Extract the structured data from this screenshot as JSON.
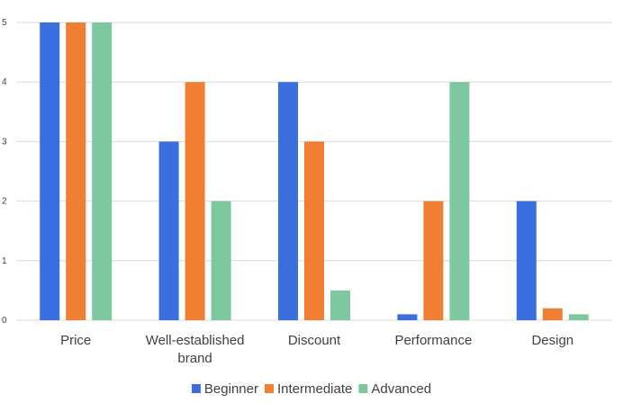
{
  "chart_data": {
    "type": "bar",
    "categories": [
      [
        "Price"
      ],
      [
        "Well-established",
        "brand"
      ],
      [
        "Discount"
      ],
      [
        "Performance"
      ],
      [
        "Design"
      ]
    ],
    "series": [
      {
        "name": "Beginner",
        "color": "#3b6fe0",
        "values": [
          5,
          3,
          4,
          0.1,
          2
        ]
      },
      {
        "name": "Intermediate",
        "color": "#f07f33",
        "values": [
          5,
          4,
          3,
          2,
          0.2
        ]
      },
      {
        "name": "Advanced",
        "color": "#7ec8a0",
        "values": [
          5,
          2,
          0.5,
          4,
          0.1
        ]
      }
    ],
    "yticks": [
      "0",
      "1",
      "2",
      "3",
      "4",
      "5"
    ],
    "ylim": [
      0,
      5
    ],
    "grid": true,
    "legend": "bottom",
    "gridColor": "#d9d9d9"
  }
}
